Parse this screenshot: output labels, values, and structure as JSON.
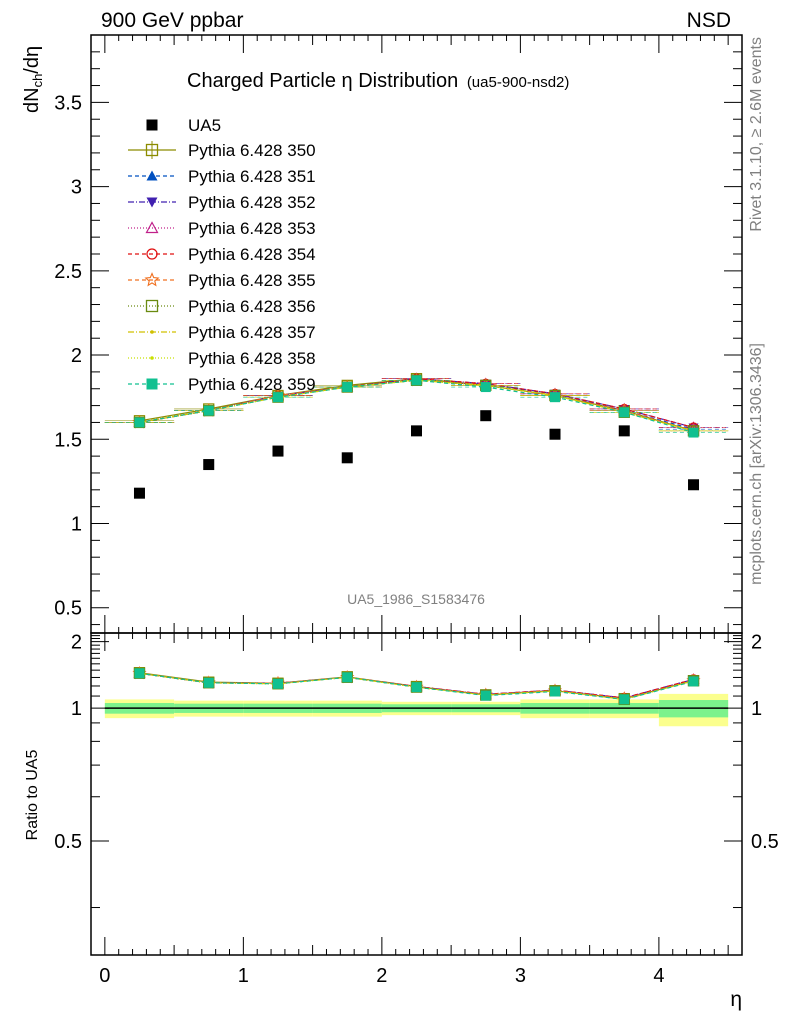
{
  "header": {
    "left": "900 GeV ppbar",
    "right": "NSD"
  },
  "side_labels": {
    "rivet": "Rivet 3.1.10, ≥ 2.6M events",
    "mcplots": "mcplots.cern.ch [arXiv:1306.3436]"
  },
  "chart_data": [
    {
      "type": "scatter",
      "title": "Charged Particle η Distribution",
      "subtitle": "(ua5-900-nsd2)",
      "ylabel": "dN_ch/dη",
      "watermark": "UA5_1986_S1583476",
      "xlim": [
        -0.1,
        4.6
      ],
      "ylim": [
        0.35,
        3.9
      ],
      "yticks": [
        0.5,
        1,
        1.5,
        2,
        2.5,
        3,
        3.5
      ],
      "ytick_labels": [
        "0.5",
        "1",
        "1.5",
        "2",
        "2.5",
        "3",
        "3.5"
      ],
      "legend_position": "top-left",
      "x": [
        0.25,
        0.75,
        1.25,
        1.75,
        2.25,
        2.75,
        3.25,
        3.75,
        4.25
      ],
      "data": {
        "name": "UA5",
        "values": [
          1.18,
          1.35,
          1.43,
          1.39,
          1.55,
          1.64,
          1.53,
          1.55,
          1.23
        ],
        "color": "#000000",
        "marker": "square-filled"
      },
      "series": [
        {
          "name": "Pythia 6.428 350",
          "color": "#8c8c00",
          "marker": "square-open",
          "dash": "solid",
          "values": [
            1.61,
            1.68,
            1.76,
            1.82,
            1.86,
            1.82,
            1.76,
            1.67,
            1.55
          ]
        },
        {
          "name": "Pythia 6.428 351",
          "color": "#0050c0",
          "marker": "triangle-up-filled",
          "dash": "4,3",
          "values": [
            1.6,
            1.67,
            1.76,
            1.81,
            1.85,
            1.82,
            1.77,
            1.67,
            1.56
          ]
        },
        {
          "name": "Pythia 6.428 352",
          "color": "#4020b0",
          "marker": "triangle-down-filled",
          "dash": "6,2,1,2",
          "values": [
            1.6,
            1.67,
            1.76,
            1.81,
            1.86,
            1.83,
            1.77,
            1.68,
            1.57
          ]
        },
        {
          "name": "Pythia 6.428 353",
          "color": "#c0208a",
          "marker": "triangle-up-open",
          "dash": "1,2",
          "values": [
            1.6,
            1.67,
            1.76,
            1.81,
            1.86,
            1.83,
            1.77,
            1.68,
            1.57
          ]
        },
        {
          "name": "Pythia 6.428 354",
          "color": "#e01010",
          "marker": "circle-open",
          "dash": "4,3",
          "values": [
            1.6,
            1.67,
            1.76,
            1.81,
            1.86,
            1.83,
            1.77,
            1.68,
            1.57
          ]
        },
        {
          "name": "Pythia 6.428 355",
          "color": "#f07020",
          "marker": "star-open",
          "dash": "4,3",
          "values": [
            1.6,
            1.67,
            1.76,
            1.81,
            1.85,
            1.82,
            1.76,
            1.67,
            1.55
          ]
        },
        {
          "name": "Pythia 6.428 356",
          "color": "#6a8a10",
          "marker": "square-open",
          "dash": "1,2",
          "values": [
            1.6,
            1.67,
            1.75,
            1.81,
            1.85,
            1.82,
            1.76,
            1.66,
            1.55
          ]
        },
        {
          "name": "Pythia 6.428 357",
          "color": "#d0c000",
          "marker": "dot",
          "dash": "6,2,1,2",
          "values": [
            1.6,
            1.67,
            1.75,
            1.81,
            1.85,
            1.82,
            1.76,
            1.66,
            1.55
          ]
        },
        {
          "name": "Pythia 6.428 358",
          "color": "#c8e000",
          "marker": "dot",
          "dash": "1,2",
          "values": [
            1.6,
            1.67,
            1.75,
            1.81,
            1.85,
            1.82,
            1.76,
            1.66,
            1.55
          ]
        },
        {
          "name": "Pythia 6.428 359",
          "color": "#10c090",
          "marker": "square-filled",
          "dash": "4,3",
          "values": [
            1.6,
            1.67,
            1.75,
            1.81,
            1.85,
            1.81,
            1.75,
            1.66,
            1.54
          ]
        }
      ]
    },
    {
      "type": "scatter",
      "ylabel": "Ratio to UA5",
      "xlabel": "η",
      "xlim": [
        -0.1,
        4.6
      ],
      "ylim": [
        0.35,
        2.3
      ],
      "yscale": "linear-in-reciprocal",
      "xticks": [
        0,
        1,
        2,
        3,
        4
      ],
      "xtick_labels": [
        "0",
        "1",
        "2",
        "3",
        "4"
      ],
      "yticks": [
        0.5,
        1,
        2
      ],
      "ytick_labels": [
        "0.5",
        "1",
        "2"
      ],
      "x": [
        0.25,
        0.75,
        1.25,
        1.75,
        2.25,
        2.75,
        3.25,
        3.75,
        4.25
      ],
      "ratio_values": [
        1.364,
        1.243,
        1.231,
        1.309,
        1.194,
        1.11,
        1.15,
        1.077,
        1.26
      ],
      "band_edges": [
        0.0,
        0.5,
        1.0,
        1.5,
        2.0,
        2.5,
        3.0,
        3.5,
        4.0,
        4.5
      ],
      "band_inner": [
        0.04,
        0.035,
        0.035,
        0.035,
        0.03,
        0.03,
        0.04,
        0.04,
        0.065
      ],
      "band_outer": [
        0.07,
        0.06,
        0.06,
        0.06,
        0.05,
        0.05,
        0.07,
        0.07,
        0.12
      ],
      "band_colors": {
        "inner": "#7cf28c",
        "outer": "#fbff8e"
      },
      "unity_line_color": "#000000"
    }
  ]
}
